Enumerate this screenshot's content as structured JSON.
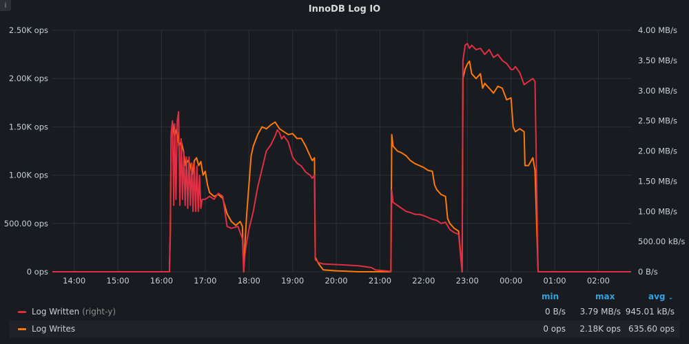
{
  "panel": {
    "title": "InnoDB Log IO",
    "info_icon": "i"
  },
  "colors": {
    "log_written": "#e02f44",
    "log_writes": "#ff780a",
    "grid": "#2c3035",
    "accent": "#33a2e5"
  },
  "legend": {
    "headers": {
      "min": "min",
      "max": "max",
      "avg": "avg"
    },
    "sort_icon": "chevron-down-icon",
    "rows": [
      {
        "name": "Log Written",
        "axis_note": "(right-y)",
        "min": "0 B/s",
        "max": "3.79 MB/s",
        "avg": "945.01 kB/s"
      },
      {
        "name": "Log Writes",
        "axis_note": "",
        "min": "0 ops",
        "max": "2.18K ops",
        "avg": "635.60 ops"
      }
    ]
  },
  "chart_data": {
    "type": "line",
    "title": "InnoDB Log IO",
    "x_unit": "hours (time of day, 24 = 00:00 next day)",
    "x_range": [
      13.5,
      26.75
    ],
    "x_ticks": [
      "14:00",
      "15:00",
      "16:00",
      "17:00",
      "18:00",
      "19:00",
      "20:00",
      "21:00",
      "22:00",
      "23:00",
      "00:00",
      "01:00",
      "02:00"
    ],
    "y_left": {
      "range": [
        0,
        2500
      ],
      "ticks": [
        "0 ops",
        "500.00 ops",
        "1.00K ops",
        "1.50K ops",
        "2.00K ops",
        "2.50K ops"
      ]
    },
    "y_right": {
      "range": [
        0,
        4
      ],
      "unit": "MB/s",
      "ticks": [
        "0 B/s",
        "500.00 kB/s",
        "1.00 MB/s",
        "1.50 MB/s",
        "2.00 MB/s",
        "2.50 MB/s",
        "3.00 MB/s",
        "3.50 MB/s",
        "4.00 MB/s"
      ]
    },
    "grid": true,
    "legend_position": "bottom",
    "series": [
      {
        "name": "Log Written",
        "axis": "right",
        "unit": "MB/s",
        "points": [
          [
            13.5,
            0
          ],
          [
            16.18,
            0
          ],
          [
            16.2,
            0.6
          ],
          [
            16.22,
            2.3
          ],
          [
            16.25,
            2.5
          ],
          [
            16.28,
            1.1
          ],
          [
            16.3,
            2.45
          ],
          [
            16.33,
            1.2
          ],
          [
            16.36,
            2.5
          ],
          [
            16.39,
            2.65
          ],
          [
            16.42,
            1.1
          ],
          [
            16.45,
            2.2
          ],
          [
            16.48,
            1.2
          ],
          [
            16.51,
            2.0
          ],
          [
            16.54,
            1.1
          ],
          [
            16.57,
            1.9
          ],
          [
            16.6,
            1.05
          ],
          [
            16.63,
            1.9
          ],
          [
            16.66,
            1.1
          ],
          [
            16.69,
            1.8
          ],
          [
            16.72,
            1.0
          ],
          [
            16.75,
            1.8
          ],
          [
            16.78,
            1.0
          ],
          [
            16.81,
            1.75
          ],
          [
            16.84,
            1.0
          ],
          [
            16.87,
            1.6
          ],
          [
            16.9,
            1.05
          ],
          [
            16.93,
            1.2
          ],
          [
            17.0,
            1.2
          ],
          [
            17.1,
            1.25
          ],
          [
            17.2,
            1.2
          ],
          [
            17.3,
            1.3
          ],
          [
            17.4,
            1.25
          ],
          [
            17.5,
            0.75
          ],
          [
            17.6,
            0.72
          ],
          [
            17.75,
            0.75
          ],
          [
            17.85,
            0.55
          ],
          [
            17.88,
            0
          ],
          [
            17.91,
            0.3
          ],
          [
            17.95,
            0.5
          ],
          [
            18.0,
            0.7
          ],
          [
            18.1,
            1.0
          ],
          [
            18.2,
            1.4
          ],
          [
            18.3,
            1.7
          ],
          [
            18.4,
            2.0
          ],
          [
            18.5,
            2.1
          ],
          [
            18.6,
            2.25
          ],
          [
            18.65,
            2.35
          ],
          [
            18.7,
            2.3
          ],
          [
            18.75,
            2.2
          ],
          [
            18.8,
            2.25
          ],
          [
            18.9,
            2.15
          ],
          [
            19.0,
            1.9
          ],
          [
            19.1,
            1.8
          ],
          [
            19.2,
            1.75
          ],
          [
            19.3,
            1.65
          ],
          [
            19.4,
            1.6
          ],
          [
            19.45,
            1.55
          ],
          [
            19.5,
            1.6
          ],
          [
            19.52,
            0.2
          ],
          [
            19.6,
            0.15
          ],
          [
            19.7,
            0.13
          ],
          [
            20.0,
            0.12
          ],
          [
            20.5,
            0.1
          ],
          [
            20.8,
            0.07
          ],
          [
            20.9,
            0.03
          ],
          [
            21.2,
            0.01
          ],
          [
            21.25,
            0
          ],
          [
            21.27,
            1.35
          ],
          [
            21.3,
            1.15
          ],
          [
            21.4,
            1.1
          ],
          [
            21.5,
            1.05
          ],
          [
            21.6,
            1.0
          ],
          [
            21.7,
            0.98
          ],
          [
            21.8,
            0.95
          ],
          [
            21.9,
            0.95
          ],
          [
            22.0,
            0.93
          ],
          [
            22.1,
            0.9
          ],
          [
            22.2,
            0.87
          ],
          [
            22.3,
            0.85
          ],
          [
            22.4,
            0.8
          ],
          [
            22.5,
            0.82
          ],
          [
            22.6,
            0.7
          ],
          [
            22.7,
            0.65
          ],
          [
            22.8,
            0.62
          ],
          [
            22.88,
            0
          ],
          [
            22.9,
            3.5
          ],
          [
            22.95,
            3.75
          ],
          [
            23.0,
            3.78
          ],
          [
            23.05,
            3.7
          ],
          [
            23.1,
            3.75
          ],
          [
            23.2,
            3.68
          ],
          [
            23.3,
            3.7
          ],
          [
            23.4,
            3.6
          ],
          [
            23.5,
            3.68
          ],
          [
            23.6,
            3.55
          ],
          [
            23.7,
            3.6
          ],
          [
            23.8,
            3.5
          ],
          [
            23.9,
            3.45
          ],
          [
            24.0,
            3.35
          ],
          [
            24.05,
            3.35
          ],
          [
            24.1,
            3.4
          ],
          [
            24.2,
            3.3
          ],
          [
            24.3,
            3.1
          ],
          [
            24.4,
            3.15
          ],
          [
            24.5,
            3.2
          ],
          [
            24.55,
            3.15
          ],
          [
            24.62,
            0
          ],
          [
            26.75,
            0
          ]
        ]
      },
      {
        "name": "Log Writes",
        "axis": "left",
        "unit": "ops",
        "points": [
          [
            13.5,
            0
          ],
          [
            16.18,
            0
          ],
          [
            16.2,
            450
          ],
          [
            16.22,
            1400
          ],
          [
            16.25,
            1550
          ],
          [
            16.3,
            1400
          ],
          [
            16.35,
            1480
          ],
          [
            16.4,
            1300
          ],
          [
            16.45,
            1350
          ],
          [
            16.5,
            1250
          ],
          [
            16.55,
            1100
          ],
          [
            16.6,
            1150
          ],
          [
            16.65,
            1120
          ],
          [
            16.7,
            1000
          ],
          [
            16.75,
            1150
          ],
          [
            16.8,
            1180
          ],
          [
            16.85,
            1100
          ],
          [
            16.9,
            1140
          ],
          [
            16.95,
            1000
          ],
          [
            17.0,
            1040
          ],
          [
            17.05,
            900
          ],
          [
            17.1,
            820
          ],
          [
            17.2,
            780
          ],
          [
            17.3,
            800
          ],
          [
            17.4,
            760
          ],
          [
            17.5,
            600
          ],
          [
            17.6,
            520
          ],
          [
            17.7,
            480
          ],
          [
            17.8,
            520
          ],
          [
            17.85,
            470
          ],
          [
            17.88,
            0
          ],
          [
            17.91,
            300
          ],
          [
            17.95,
            600
          ],
          [
            18.0,
            900
          ],
          [
            18.05,
            1200
          ],
          [
            18.1,
            1300
          ],
          [
            18.2,
            1420
          ],
          [
            18.3,
            1500
          ],
          [
            18.4,
            1480
          ],
          [
            18.5,
            1520
          ],
          [
            18.6,
            1550
          ],
          [
            18.7,
            1480
          ],
          [
            18.8,
            1450
          ],
          [
            18.9,
            1420
          ],
          [
            19.0,
            1430
          ],
          [
            19.1,
            1380
          ],
          [
            19.2,
            1380
          ],
          [
            19.3,
            1300
          ],
          [
            19.4,
            1200
          ],
          [
            19.45,
            1150
          ],
          [
            19.5,
            1180
          ],
          [
            19.52,
            150
          ],
          [
            19.6,
            80
          ],
          [
            19.7,
            20
          ],
          [
            20.0,
            10
          ],
          [
            20.5,
            0
          ],
          [
            21.25,
            0
          ],
          [
            21.27,
            1420
          ],
          [
            21.3,
            1300
          ],
          [
            21.4,
            1250
          ],
          [
            21.5,
            1230
          ],
          [
            21.6,
            1200
          ],
          [
            21.7,
            1150
          ],
          [
            21.8,
            1120
          ],
          [
            21.9,
            1100
          ],
          [
            22.0,
            1080
          ],
          [
            22.1,
            1050
          ],
          [
            22.2,
            1040
          ],
          [
            22.25,
            900
          ],
          [
            22.3,
            850
          ],
          [
            22.4,
            800
          ],
          [
            22.5,
            780
          ],
          [
            22.55,
            550
          ],
          [
            22.6,
            500
          ],
          [
            22.7,
            450
          ],
          [
            22.8,
            420
          ],
          [
            22.88,
            0
          ],
          [
            22.9,
            2000
          ],
          [
            22.95,
            2100
          ],
          [
            23.0,
            2150
          ],
          [
            23.05,
            2180
          ],
          [
            23.1,
            2050
          ],
          [
            23.2,
            2000
          ],
          [
            23.3,
            2050
          ],
          [
            23.35,
            1900
          ],
          [
            23.4,
            1950
          ],
          [
            23.5,
            1900
          ],
          [
            23.6,
            1850
          ],
          [
            23.7,
            1920
          ],
          [
            23.8,
            1900
          ],
          [
            23.9,
            1780
          ],
          [
            24.0,
            1800
          ],
          [
            24.05,
            1500
          ],
          [
            24.1,
            1450
          ],
          [
            24.2,
            1480
          ],
          [
            24.3,
            1450
          ],
          [
            24.32,
            1100
          ],
          [
            24.4,
            1100
          ],
          [
            24.5,
            1180
          ],
          [
            24.55,
            1050
          ],
          [
            24.62,
            0
          ],
          [
            26.75,
            0
          ]
        ]
      }
    ]
  }
}
